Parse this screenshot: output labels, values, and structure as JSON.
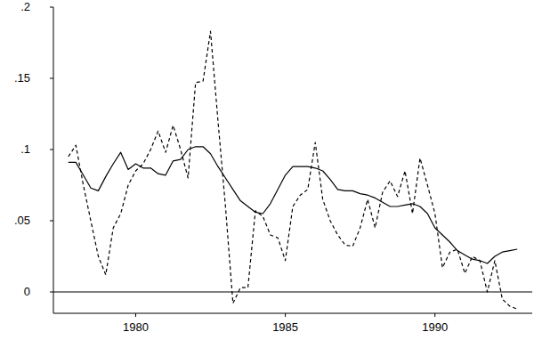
{
  "chart_data": {
    "type": "line",
    "x": [
      1977.75,
      1978,
      1978.25,
      1978.5,
      1978.75,
      1979,
      1979.25,
      1979.5,
      1979.75,
      1980,
      1980.25,
      1980.5,
      1980.75,
      1981,
      1981.25,
      1981.5,
      1981.75,
      1982,
      1982.25,
      1982.5,
      1982.75,
      1983,
      1983.25,
      1983.5,
      1983.75,
      1984,
      1984.25,
      1984.5,
      1984.75,
      1985,
      1985.25,
      1985.5,
      1985.75,
      1986,
      1986.25,
      1986.5,
      1986.75,
      1987,
      1987.25,
      1987.5,
      1987.75,
      1988,
      1988.25,
      1988.5,
      1988.75,
      1989,
      1989.25,
      1989.5,
      1989.75,
      1990,
      1990.25,
      1990.5,
      1990.75,
      1991,
      1991.25,
      1991.5,
      1991.75,
      1992,
      1992.25,
      1992.5,
      1992.75
    ],
    "series": [
      {
        "color": "#000000",
        "line_style": "solid",
        "values": [
          0.091,
          0.091,
          0.082,
          0.073,
          0.071,
          0.081,
          0.09,
          0.098,
          0.086,
          0.09,
          0.087,
          0.087,
          0.083,
          0.082,
          0.092,
          0.093,
          0.1,
          0.102,
          0.102,
          0.097,
          0.088,
          0.08,
          0.072,
          0.064,
          0.06,
          0.056,
          0.055,
          0.062,
          0.072,
          0.082,
          0.088,
          0.088,
          0.088,
          0.087,
          0.085,
          0.079,
          0.072,
          0.071,
          0.071,
          0.069,
          0.068,
          0.066,
          0.063,
          0.06,
          0.06,
          0.061,
          0.062,
          0.06,
          0.055,
          0.045,
          0.04,
          0.035,
          0.029,
          0.026,
          0.023,
          0.022,
          0.02,
          0.025,
          0.028,
          0.029,
          0.03
        ]
      },
      {
        "color": "#000000",
        "line_style": "dashed",
        "values": [
          0.095,
          0.103,
          0.075,
          0.05,
          0.025,
          0.012,
          0.045,
          0.055,
          0.075,
          0.085,
          0.09,
          0.1,
          0.113,
          0.098,
          0.117,
          0.1,
          0.08,
          0.147,
          0.148,
          0.183,
          0.12,
          0.06,
          -0.008,
          0.003,
          0.003,
          0.057,
          0.053,
          0.04,
          0.038,
          0.022,
          0.06,
          0.068,
          0.072,
          0.105,
          0.065,
          0.05,
          0.04,
          0.033,
          0.032,
          0.045,
          0.065,
          0.045,
          0.07,
          0.078,
          0.067,
          0.085,
          0.055,
          0.094,
          0.075,
          0.055,
          0.017,
          0.028,
          0.03,
          0.013,
          0.025,
          0.022,
          0.0,
          0.022,
          -0.005,
          -0.01,
          -0.012
        ]
      }
    ],
    "xlim": [
      1977.25,
      1993.25
    ],
    "xticks": [
      1980,
      1985,
      1990
    ],
    "ylim": [
      -0.015,
      0.2
    ],
    "yticks": [
      0,
      {
        "value": 0.05,
        "label": ".05"
      },
      {
        "value": 0.1,
        "label": ".1"
      },
      {
        "value": 0.15,
        "label": ".15"
      },
      {
        "value": 0.2,
        "label": ".2"
      }
    ],
    "grid": false
  }
}
